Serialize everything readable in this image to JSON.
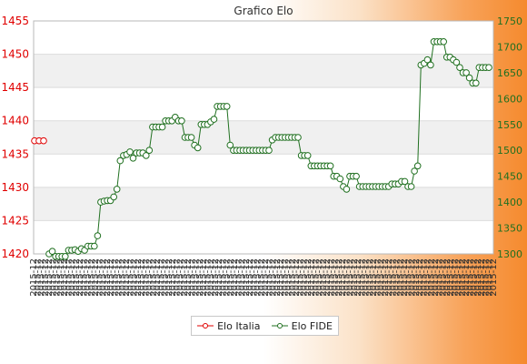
{
  "chart_data": {
    "type": "line",
    "title": "Grafico Elo",
    "left_axis": {
      "ticks": [
        "1455",
        "1450",
        "1445",
        "1440",
        "1435",
        "1430",
        "1425",
        "1420"
      ],
      "min": 1420,
      "max": 1455,
      "color": "#e00000"
    },
    "right_axis": {
      "ticks": [
        "1750",
        "1700",
        "1650",
        "1600",
        "1550",
        "1500",
        "1450",
        "1400",
        "1350",
        "1300"
      ],
      "min": 1300,
      "max": 1750,
      "color": "#207020"
    },
    "grid": true,
    "x_tick_label": "2015-12",
    "x_tick_count": 120,
    "legend_position": "bottom",
    "series": [
      {
        "name": "Elo Italia",
        "axis": "left",
        "color": "#e00000",
        "values": [
          1437,
          1437,
          1437
        ]
      },
      {
        "name": "Elo FIDE",
        "axis": "right",
        "color": "#207020",
        "values": [
          1300,
          1305,
          1295,
          1295,
          1295,
          1295,
          1307,
          1307,
          1308,
          1305,
          1310,
          1307,
          1315,
          1315,
          1315,
          1335,
          1400,
          1402,
          1403,
          1403,
          1410,
          1425,
          1480,
          1490,
          1492,
          1497,
          1485,
          1495,
          1495,
          1495,
          1490,
          1500,
          1545,
          1545,
          1545,
          1545,
          1557,
          1557,
          1557,
          1564,
          1557,
          1557,
          1525,
          1525,
          1525,
          1510,
          1505,
          1550,
          1550,
          1550,
          1555,
          1560,
          1585,
          1585,
          1585,
          1585,
          1510,
          1500,
          1500,
          1500,
          1500,
          1500,
          1500,
          1500,
          1500,
          1500,
          1500,
          1500,
          1500,
          1520,
          1525,
          1525,
          1525,
          1525,
          1525,
          1525,
          1525,
          1525,
          1490,
          1490,
          1490,
          1470,
          1470,
          1470,
          1470,
          1470,
          1470,
          1470,
          1450,
          1450,
          1445,
          1430,
          1425,
          1450,
          1450,
          1450,
          1430,
          1430,
          1430,
          1430,
          1430,
          1430,
          1430,
          1430,
          1430,
          1430,
          1435,
          1435,
          1435,
          1440,
          1440,
          1430,
          1430,
          1460,
          1470,
          1665,
          1668,
          1675,
          1665,
          1710,
          1710,
          1710,
          1710,
          1680,
          1680,
          1675,
          1670,
          1660,
          1650,
          1650,
          1640,
          1630,
          1630,
          1660,
          1660,
          1660,
          1660
        ]
      }
    ]
  }
}
